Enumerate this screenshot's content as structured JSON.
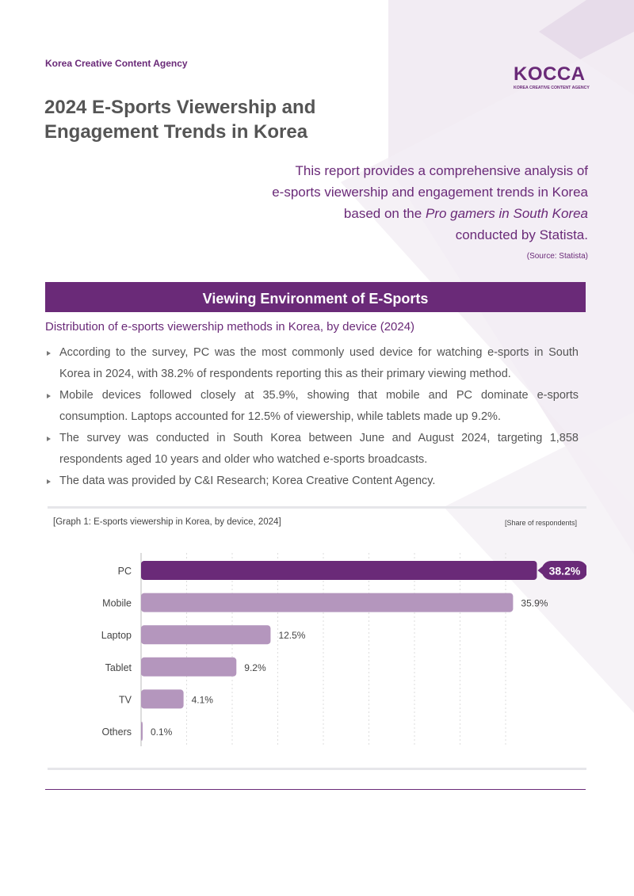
{
  "header": {
    "agency": "Korea Creative Content Agency",
    "logo_text": "KOCCA",
    "logo_subtext": "KOREA CREATIVE CONTENT AGENCY",
    "title_lines": [
      "2024 E-Sports Viewership and",
      "Engagement Trends in Korea"
    ]
  },
  "intro": {
    "line1": "This report provides a comprehensive analysis of",
    "line2": "e-sports viewership and engagement trends in Korea",
    "line3_prefix": "based on the ",
    "line3_italic": "Pro gamers in South Korea",
    "line4": "conducted by Statista.",
    "source": "(Source: Statista)"
  },
  "section": {
    "heading": "Viewing Environment of E-Sports",
    "subheading": "Distribution of e-sports viewership methods in Korea, by device (2024)",
    "bullets": [
      "According to the survey, PC was the most commonly used device for watching e-sports in South Korea in 2024, with 38.2% of respondents reporting this as their primary viewing method.",
      "Mobile devices followed closely at 35.9%, showing that mobile and PC dominate e-sports consumption. Laptops accounted for 12.5% of viewership, while tablets made up 9.2%.",
      "The survey was conducted in South Korea between June and August 2024, targeting 1,858 respondents aged 10 years and older who watched e-sports broadcasts.",
      "The data was provided by C&I Research; Korea Creative Content Agency."
    ]
  },
  "graph": {
    "title": "[Graph 1: E-sports viewership in Korea, by device, 2024]",
    "unit": "[Share of respondents]"
  },
  "chart_data": {
    "type": "bar",
    "orientation": "horizontal",
    "title": "E-sports viewership in Korea, by device, 2024",
    "categories": [
      "PC",
      "Mobile",
      "Laptop",
      "Tablet",
      "TV",
      "Others"
    ],
    "values": [
      38.2,
      35.9,
      12.5,
      9.2,
      4.1,
      0.1
    ],
    "value_labels": [
      "38.2%",
      "35.9%",
      "12.5%",
      "9.2%",
      "4.1%",
      "0.1%"
    ],
    "highlight_index": 0,
    "xlim": [
      0,
      40
    ],
    "ylabel": "",
    "xlabel": "Share of respondents",
    "grid": true,
    "colors": {
      "highlight": "#6a2a78",
      "bar": "#b496bd",
      "label_bg": "#6a2a78"
    }
  }
}
